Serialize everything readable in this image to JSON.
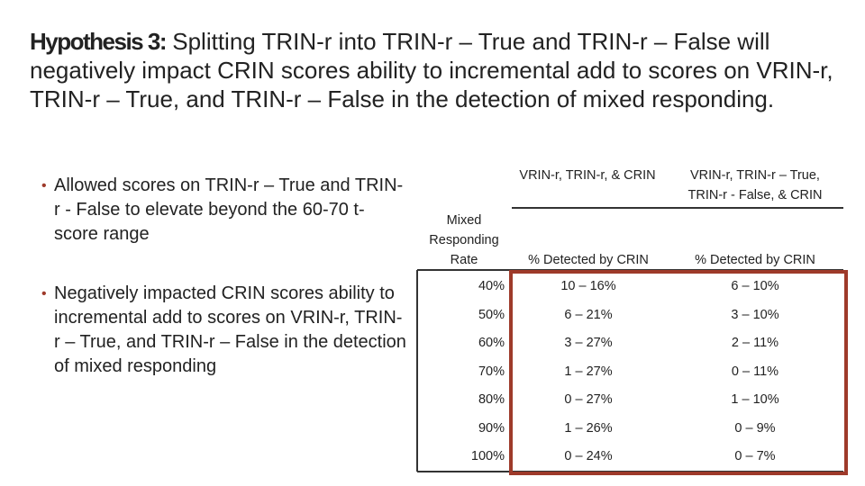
{
  "title": {
    "label": "Hypothesis 3:",
    "text": "Splitting TRIN-r into TRIN-r – True and TRIN-r – False will negatively impact CRIN scores ability to incremental add to scores on VRIN-r, TRIN-r – True, and TRIN-r – False in the detection of mixed responding."
  },
  "bullets": [
    "Allowed scores on TRIN-r – True and TRIN-r - False to elevate beyond the 60-70 t-score range",
    "Negatively impacted CRIN scores ability to incremental add to scores on VRIN-r, TRIN-r – True, and TRIN-r – False in the detection of mixed responding"
  ],
  "table": {
    "group_headers": [
      "VRIN-r, TRIN-r, & CRIN",
      "VRIN-r, TRIN-r – True, TRIN-r - False, & CRIN"
    ],
    "headers": [
      "Mixed Responding Rate",
      "% Detected by CRIN",
      "% Detected by CRIN"
    ],
    "rows": [
      [
        "40%",
        "10 – 16%",
        "6 – 10%"
      ],
      [
        "50%",
        "6 – 21%",
        "3 – 10%"
      ],
      [
        "60%",
        "3 – 27%",
        "2 – 11%"
      ],
      [
        "70%",
        "1 – 27%",
        "0 – 11%"
      ],
      [
        "80%",
        "0 – 27%",
        "1 – 10%"
      ],
      [
        "90%",
        "1 – 26%",
        "0 – 9%"
      ],
      [
        "100%",
        "0 – 24%",
        "0 – 7%"
      ]
    ]
  }
}
